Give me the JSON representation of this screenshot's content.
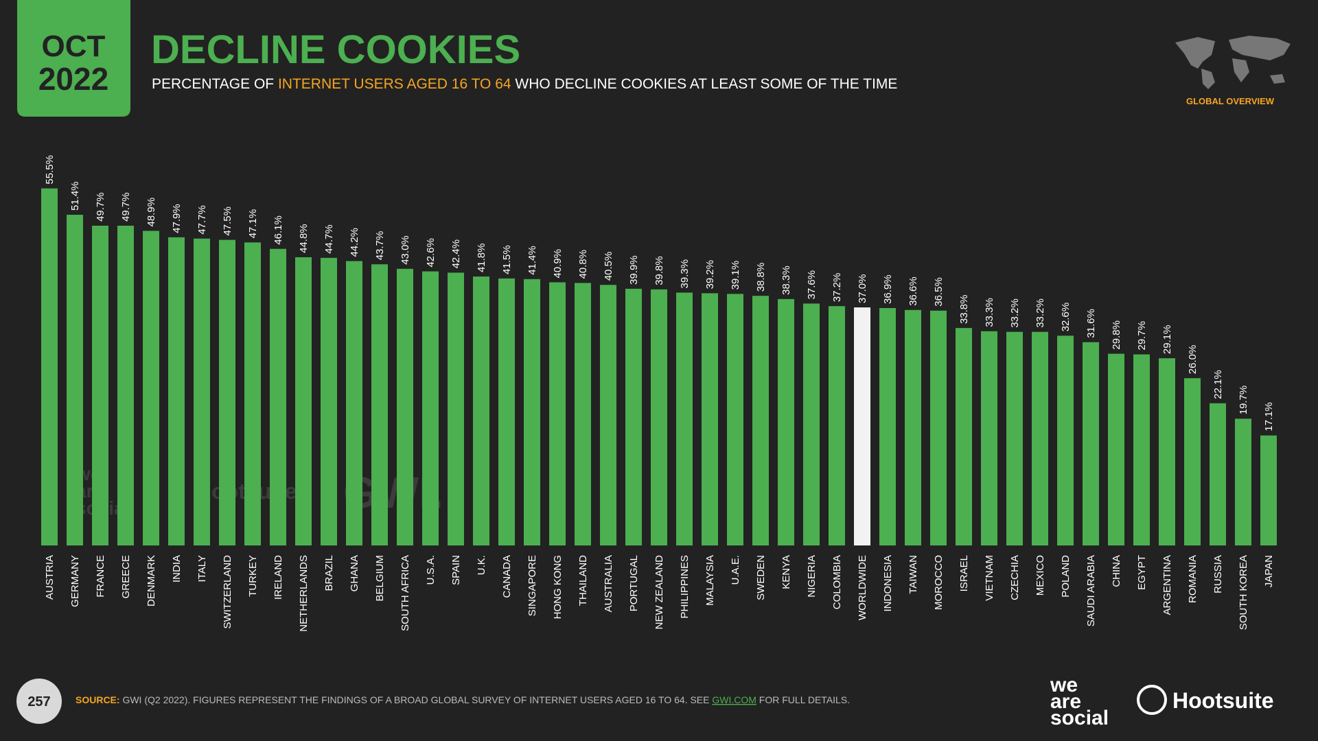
{
  "header": {
    "month": "OCT",
    "year": "2022",
    "section": "GLOBAL OVERVIEW"
  },
  "chart_data": {
    "type": "bar",
    "title": "DECLINE COOKIES",
    "subtitle": [
      "PERCENTAGE OF ",
      "INTERNET USERS AGED 16 TO 64",
      " WHO DECLINE COOKIES AT LEAST SOME OF THE TIME"
    ],
    "categories": [
      "AUSTRIA",
      "GERMANY",
      "FRANCE",
      "GREECE",
      "DENMARK",
      "INDIA",
      "ITALY",
      "SWITZERLAND",
      "TURKEY",
      "IRELAND",
      "NETHERLANDS",
      "BRAZIL",
      "GHANA",
      "BELGIUM",
      "SOUTH AFRICA",
      "U.S.A.",
      "SPAIN",
      "U.K.",
      "CANADA",
      "SINGAPORE",
      "HONG KONG",
      "THAILAND",
      "AUSTRALIA",
      "PORTUGAL",
      "NEW ZEALAND",
      "PHILIPPINES",
      "MALAYSIA",
      "U.A.E.",
      "SWEDEN",
      "KENYA",
      "NIGERIA",
      "COLOMBIA",
      "WORLDWIDE",
      "INDONESIA",
      "TAIWAN",
      "MOROCCO",
      "ISRAEL",
      "VIETNAM",
      "CZECHIA",
      "MEXICO",
      "POLAND",
      "SAUDI ARABIA",
      "CHINA",
      "EGYPT",
      "ARGENTINA",
      "ROMANIA",
      "RUSSIA",
      "SOUTH KOREA",
      "JAPAN"
    ],
    "values": [
      55.5,
      51.4,
      49.7,
      49.7,
      48.9,
      47.9,
      47.7,
      47.5,
      47.1,
      46.1,
      44.8,
      44.7,
      44.2,
      43.7,
      43.0,
      42.6,
      42.4,
      41.8,
      41.5,
      41.4,
      40.9,
      40.8,
      40.5,
      39.9,
      39.8,
      39.3,
      39.2,
      39.1,
      38.8,
      38.3,
      37.6,
      37.2,
      37.0,
      36.9,
      36.6,
      36.5,
      33.8,
      33.3,
      33.2,
      33.2,
      32.6,
      31.6,
      29.8,
      29.7,
      29.1,
      26.0,
      22.1,
      19.7,
      17.1
    ],
    "value_labels": [
      "55.5%",
      "51.4%",
      "49.7%",
      "49.7%",
      "48.9%",
      "47.9%",
      "47.7%",
      "47.5%",
      "47.1%",
      "46.1%",
      "44.8%",
      "44.7%",
      "44.2%",
      "43.7%",
      "43.0%",
      "42.6%",
      "42.4%",
      "41.8%",
      "41.5%",
      "41.4%",
      "40.9%",
      "40.8%",
      "40.5%",
      "39.9%",
      "39.8%",
      "39.3%",
      "39.2%",
      "39.1%",
      "38.8%",
      "38.3%",
      "37.6%",
      "37.2%",
      "37.0%",
      "36.9%",
      "36.6%",
      "36.5%",
      "33.8%",
      "33.3%",
      "33.2%",
      "33.2%",
      "32.6%",
      "31.6%",
      "29.8%",
      "29.7%",
      "29.1%",
      "26.0%",
      "22.1%",
      "19.7%",
      "17.1%"
    ],
    "color": "#4caf50",
    "highlight_category": "WORLDWIDE",
    "highlight_color": "#f2f2f2"
  },
  "footer": {
    "page": "257",
    "source_label": "SOURCE:",
    "source_text": "GWI (Q2 2022). FIGURES REPRESENT THE FINDINGS OF A BROAD GLOBAL SURVEY OF INTERNET USERS AGED 16 TO 64. SEE ",
    "source_link": "GWI.COM",
    "source_end": " FOR FULL DETAILS.",
    "logo_was": [
      "we",
      "are",
      "social"
    ],
    "logo_hootsuite": "Hootsuite",
    "watermark_gwi": "GWI."
  }
}
